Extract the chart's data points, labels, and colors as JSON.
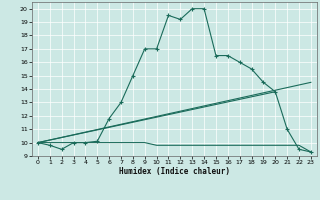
{
  "xlabel": "Humidex (Indice chaleur)",
  "xlim": [
    -0.5,
    23.5
  ],
  "ylim": [
    9,
    20.5
  ],
  "xticks": [
    0,
    1,
    2,
    3,
    4,
    5,
    6,
    7,
    8,
    9,
    10,
    11,
    12,
    13,
    14,
    15,
    16,
    17,
    18,
    19,
    20,
    21,
    22,
    23
  ],
  "yticks": [
    9,
    10,
    11,
    12,
    13,
    14,
    15,
    16,
    17,
    18,
    19,
    20
  ],
  "bg_color": "#cce8e4",
  "line_color": "#1a6b5a",
  "curve1_x": [
    0,
    1,
    2,
    3,
    4,
    5,
    6,
    7,
    8,
    9,
    10,
    11,
    12,
    13,
    14,
    15,
    16,
    17,
    18,
    19,
    20,
    21,
    22,
    23
  ],
  "curve1_y": [
    10,
    9.8,
    9.5,
    10,
    10,
    10.1,
    11.8,
    13,
    15,
    17,
    17,
    19.5,
    19.2,
    20,
    20,
    16.5,
    16.5,
    16,
    15.5,
    14.5,
    13.8,
    11,
    9.5,
    9.3
  ],
  "curve2_x": [
    0,
    1,
    2,
    3,
    4,
    5,
    6,
    7,
    8,
    9,
    10,
    11,
    12,
    13,
    14,
    15,
    16,
    17,
    18,
    19,
    20,
    21,
    22,
    23
  ],
  "curve2_y": [
    10,
    10,
    10,
    10,
    10,
    10,
    10,
    10,
    10,
    10,
    9.8,
    9.8,
    9.8,
    9.8,
    9.8,
    9.8,
    9.8,
    9.8,
    9.8,
    9.8,
    9.8,
    9.8,
    9.8,
    9.3
  ],
  "curve3_x": [
    0,
    23
  ],
  "curve3_y": [
    10,
    14.5
  ],
  "curve4_x": [
    0,
    20
  ],
  "curve4_y": [
    10,
    13.8
  ]
}
